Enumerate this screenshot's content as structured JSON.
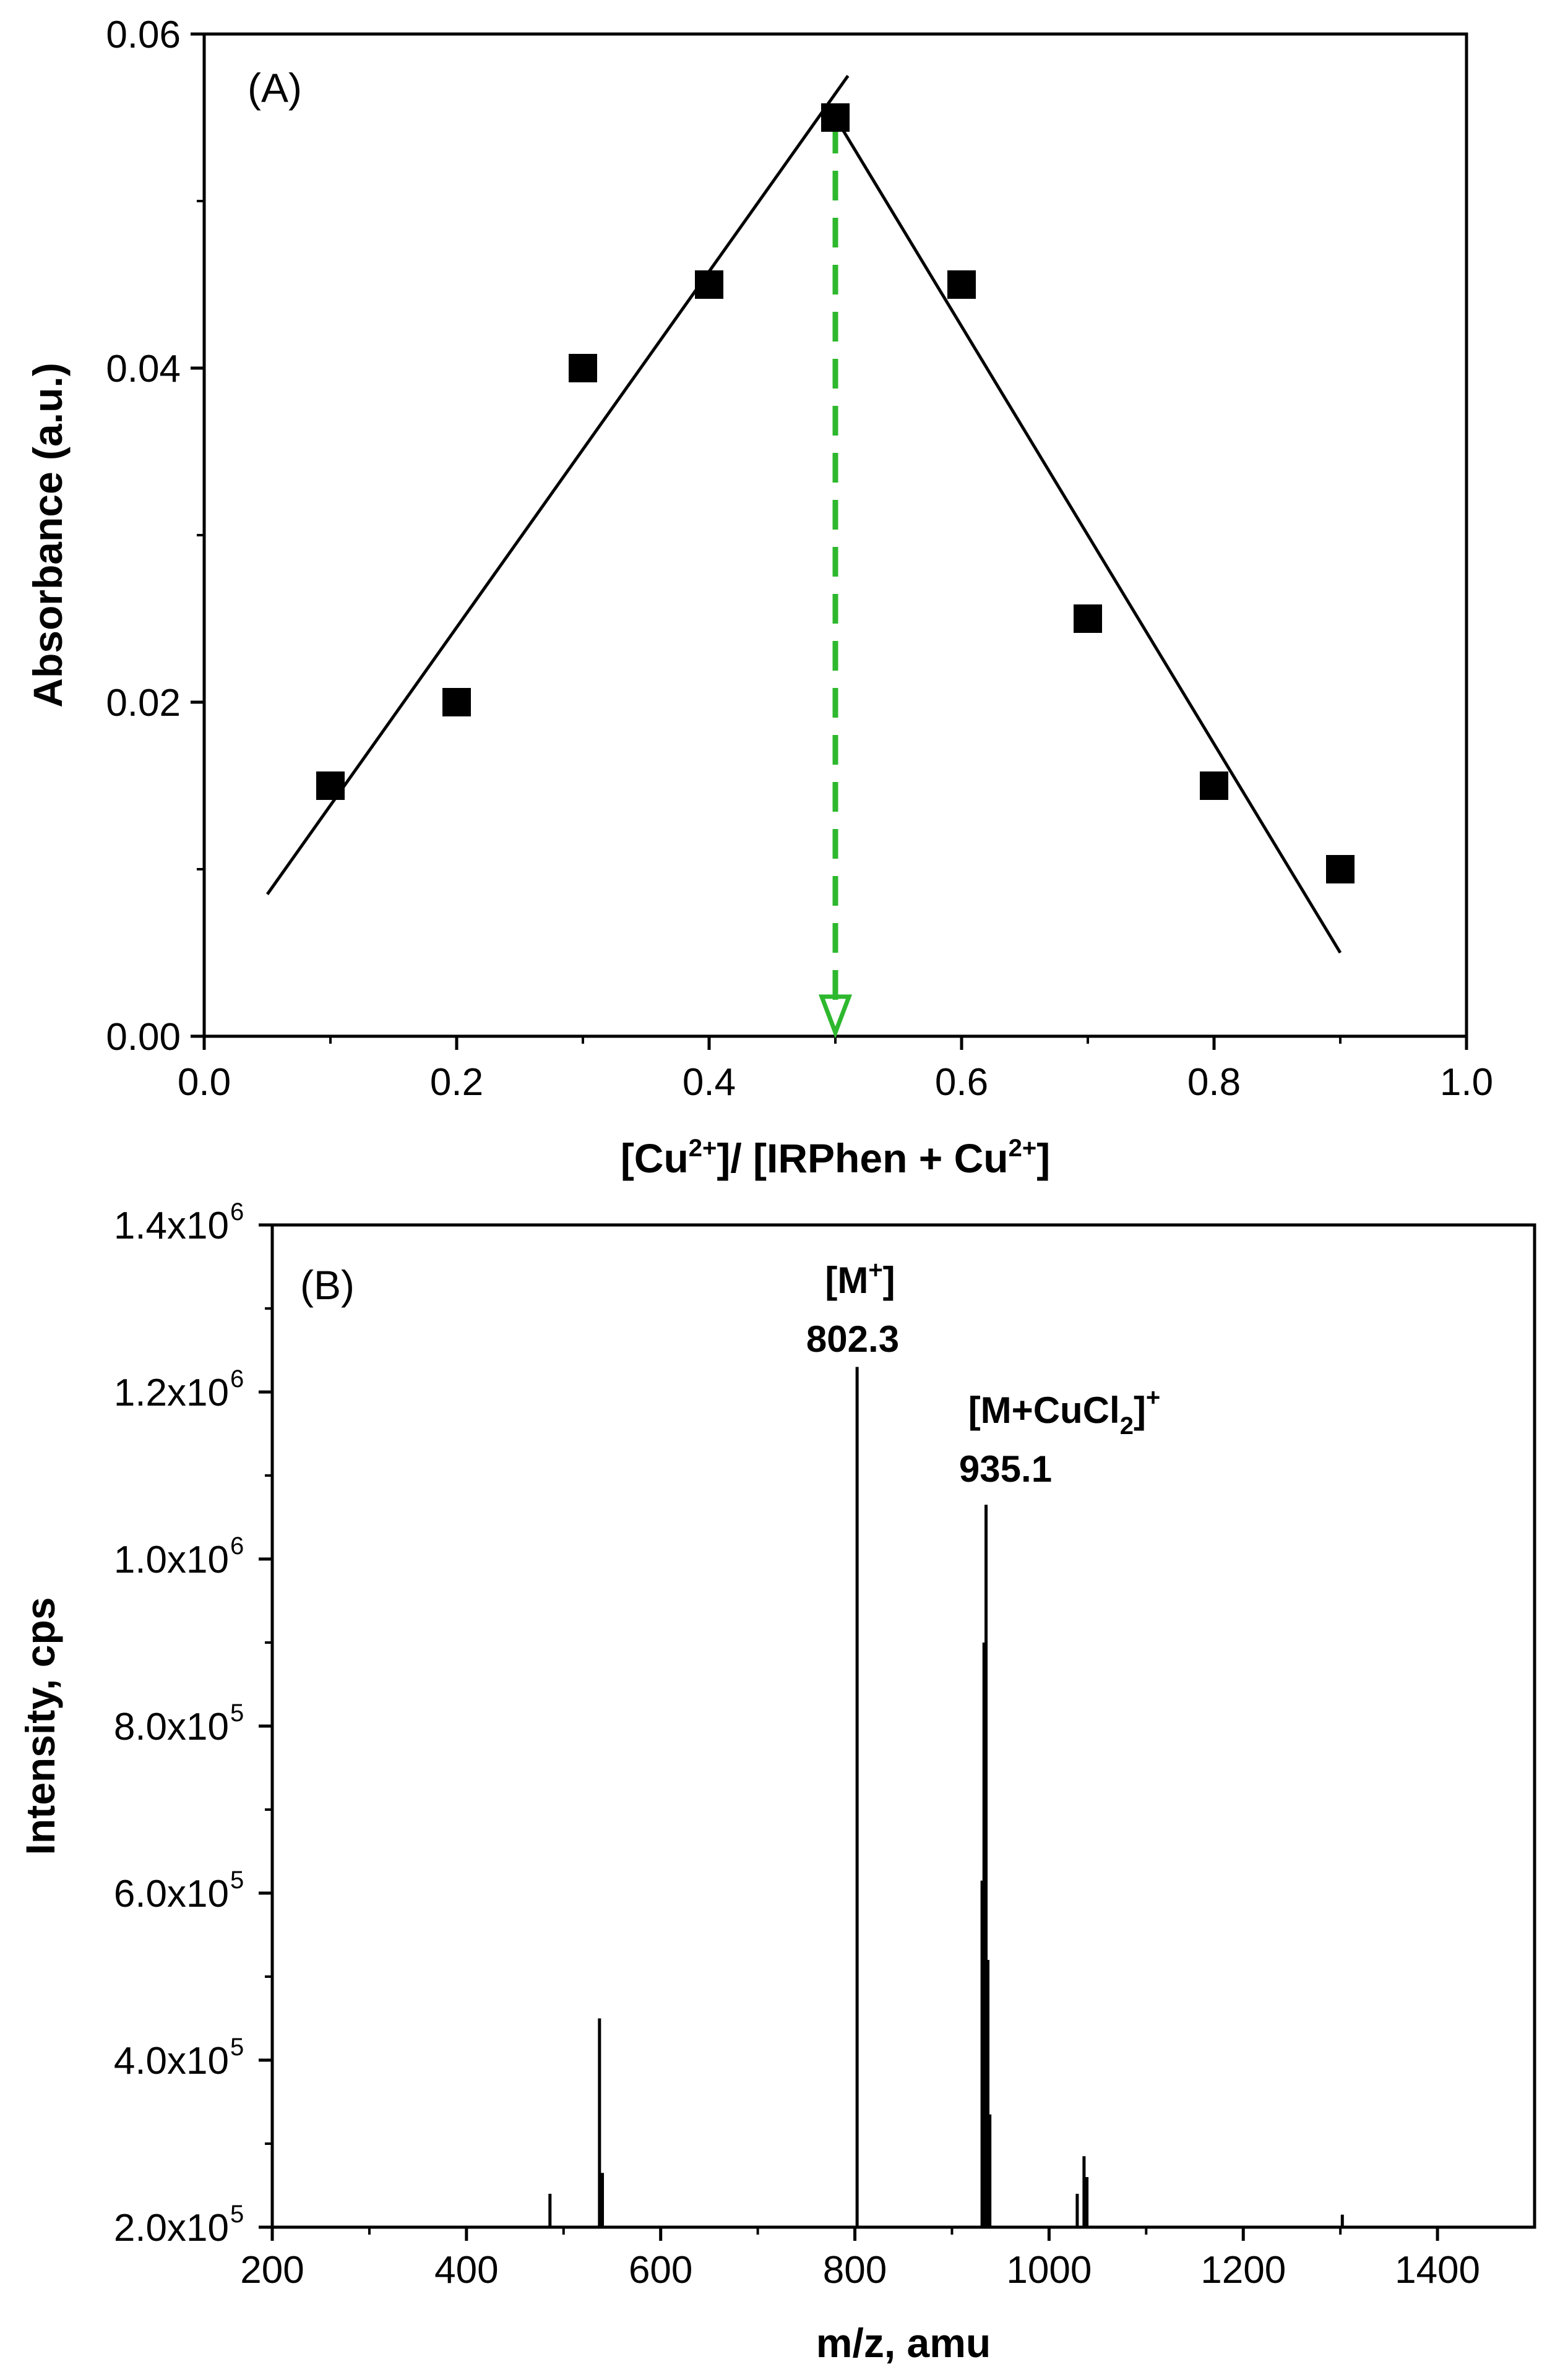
{
  "chart_data": [
    {
      "panel": "(A)",
      "type": "scatter",
      "xlabel": {
        "main": "[Cu",
        "sup": "2+",
        "rest": "]/ [IRPhen + Cu",
        "sup2": "2+",
        "end": "]"
      },
      "ylabel": "Absorbance (a.u.)",
      "xlim": [
        0.0,
        1.0
      ],
      "ylim": [
        0.0,
        0.06
      ],
      "x_ticks": [
        "0.0",
        "0.2",
        "0.4",
        "0.6",
        "0.8",
        "1.0"
      ],
      "y_ticks": [
        "0.00",
        "0.02",
        "0.04",
        "0.06"
      ],
      "points": [
        {
          "x": 0.1,
          "y": 0.015
        },
        {
          "x": 0.2,
          "y": 0.02
        },
        {
          "x": 0.3,
          "y": 0.04
        },
        {
          "x": 0.4,
          "y": 0.045
        },
        {
          "x": 0.5,
          "y": 0.055
        },
        {
          "x": 0.6,
          "y": 0.045
        },
        {
          "x": 0.7,
          "y": 0.025
        },
        {
          "x": 0.8,
          "y": 0.015
        },
        {
          "x": 0.9,
          "y": 0.01
        }
      ],
      "fit_lines": [
        {
          "x": [
            0.05,
            0.51
          ],
          "y": [
            0.0085,
            0.0575
          ]
        },
        {
          "x": [
            0.5,
            0.9
          ],
          "y": [
            0.055,
            0.005
          ]
        }
      ],
      "marker_line": {
        "x": 0.5,
        "y_from": 0.055,
        "y_to": 0.0,
        "color": "#2db82d",
        "style": "dashed arrow"
      },
      "marker_color": "#000000"
    },
    {
      "panel": "(B)",
      "type": "bar",
      "xlabel": "m/z, amu",
      "ylabel": "Intensity, cps",
      "xlim": [
        200,
        1500
      ],
      "ylim": [
        200000,
        1400000
      ],
      "x_ticks": [
        "200",
        "400",
        "600",
        "800",
        "1000",
        "1200",
        "1400"
      ],
      "y_ticks": [
        {
          "m": "2.0x10",
          "e": "5"
        },
        {
          "m": "4.0x10",
          "e": "5"
        },
        {
          "m": "6.0x10",
          "e": "5"
        },
        {
          "m": "8.0x10",
          "e": "5"
        },
        {
          "m": "1.0x10",
          "e": "6"
        },
        {
          "m": "1.2x10",
          "e": "6"
        },
        {
          "m": "1.4x10",
          "e": "6"
        }
      ],
      "peaks": [
        {
          "x": 486,
          "y": 240000
        },
        {
          "x": 537,
          "y": 450000
        },
        {
          "x": 540,
          "y": 265000
        },
        {
          "x": 802.3,
          "y": 1230000
        },
        {
          "x": 931,
          "y": 615000
        },
        {
          "x": 933,
          "y": 900000
        },
        {
          "x": 935.1,
          "y": 1065000
        },
        {
          "x": 937,
          "y": 520000
        },
        {
          "x": 939,
          "y": 335000
        },
        {
          "x": 1029,
          "y": 240000
        },
        {
          "x": 1036,
          "y": 285000
        },
        {
          "x": 1039,
          "y": 260000
        },
        {
          "x": 1302,
          "y": 215000
        }
      ],
      "annotations": [
        {
          "text": "[M",
          "sup": "+",
          "end": "]",
          "value": "802.3"
        },
        {
          "text": "[M+CuCl",
          "sub": "2",
          "end": "]",
          "sup": "+",
          "value": "935.1"
        }
      ]
    }
  ]
}
